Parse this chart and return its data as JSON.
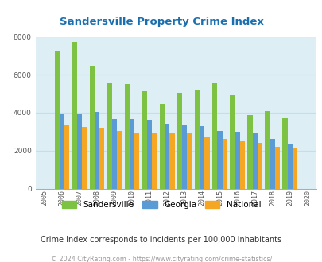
{
  "title": "Sandersville Property Crime Index",
  "years": [
    2005,
    2006,
    2007,
    2008,
    2009,
    2010,
    2011,
    2012,
    2013,
    2014,
    2015,
    2016,
    2017,
    2018,
    2019,
    2020
  ],
  "sandersville": [
    null,
    7250,
    7700,
    6450,
    5550,
    5500,
    5150,
    4450,
    5050,
    5200,
    5550,
    4900,
    3850,
    4100,
    3750,
    null
  ],
  "georgia": [
    null,
    3950,
    3950,
    4050,
    3650,
    3650,
    3600,
    3400,
    3350,
    3300,
    3050,
    3000,
    2950,
    2600,
    2350,
    null
  ],
  "national": [
    null,
    3350,
    3250,
    3200,
    3050,
    2950,
    2950,
    2950,
    2900,
    2700,
    2600,
    2500,
    2400,
    2200,
    2100,
    null
  ],
  "sandersville_color": "#7dc242",
  "georgia_color": "#5b9bd5",
  "national_color": "#f5a623",
  "bg_color": "#ddeef5",
  "ylim": [
    0,
    8000
  ],
  "yticks": [
    0,
    2000,
    4000,
    6000,
    8000
  ],
  "all_years": [
    2005,
    2006,
    2007,
    2008,
    2009,
    2010,
    2011,
    2012,
    2013,
    2014,
    2015,
    2016,
    2017,
    2018,
    2019,
    2020
  ],
  "subtitle": "Crime Index corresponds to incidents per 100,000 inhabitants",
  "footer": "© 2024 CityRating.com - https://www.cityrating.com/crime-statistics/",
  "title_color": "#1a6faf",
  "subtitle_color": "#333333",
  "footer_color": "#999999",
  "grid_color": "#c8dde8"
}
